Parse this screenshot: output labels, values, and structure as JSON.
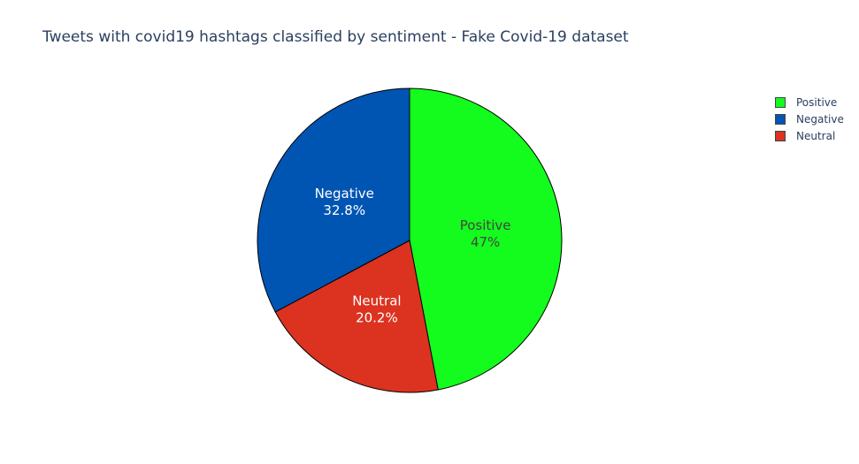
{
  "chart_data": {
    "type": "pie",
    "title": "Tweets with covid19 hashtags classified by sentiment - Fake Covid-19 dataset",
    "labels": [
      "Positive",
      "Negative",
      "Neutral"
    ],
    "values": [
      47,
      32.8,
      20.2
    ],
    "value_labels": [
      "47%",
      "32.8%",
      "20.2%"
    ],
    "slice_order": [
      "Positive",
      "Neutral",
      "Negative"
    ],
    "colors": [
      "#14fc1d",
      "#0055b3",
      "#dc3220"
    ],
    "label_colors": [
      "#444444",
      "#ffffff",
      "#ffffff"
    ],
    "legend_position": "top-right",
    "direction": "clockwise",
    "start_angle": "top"
  }
}
